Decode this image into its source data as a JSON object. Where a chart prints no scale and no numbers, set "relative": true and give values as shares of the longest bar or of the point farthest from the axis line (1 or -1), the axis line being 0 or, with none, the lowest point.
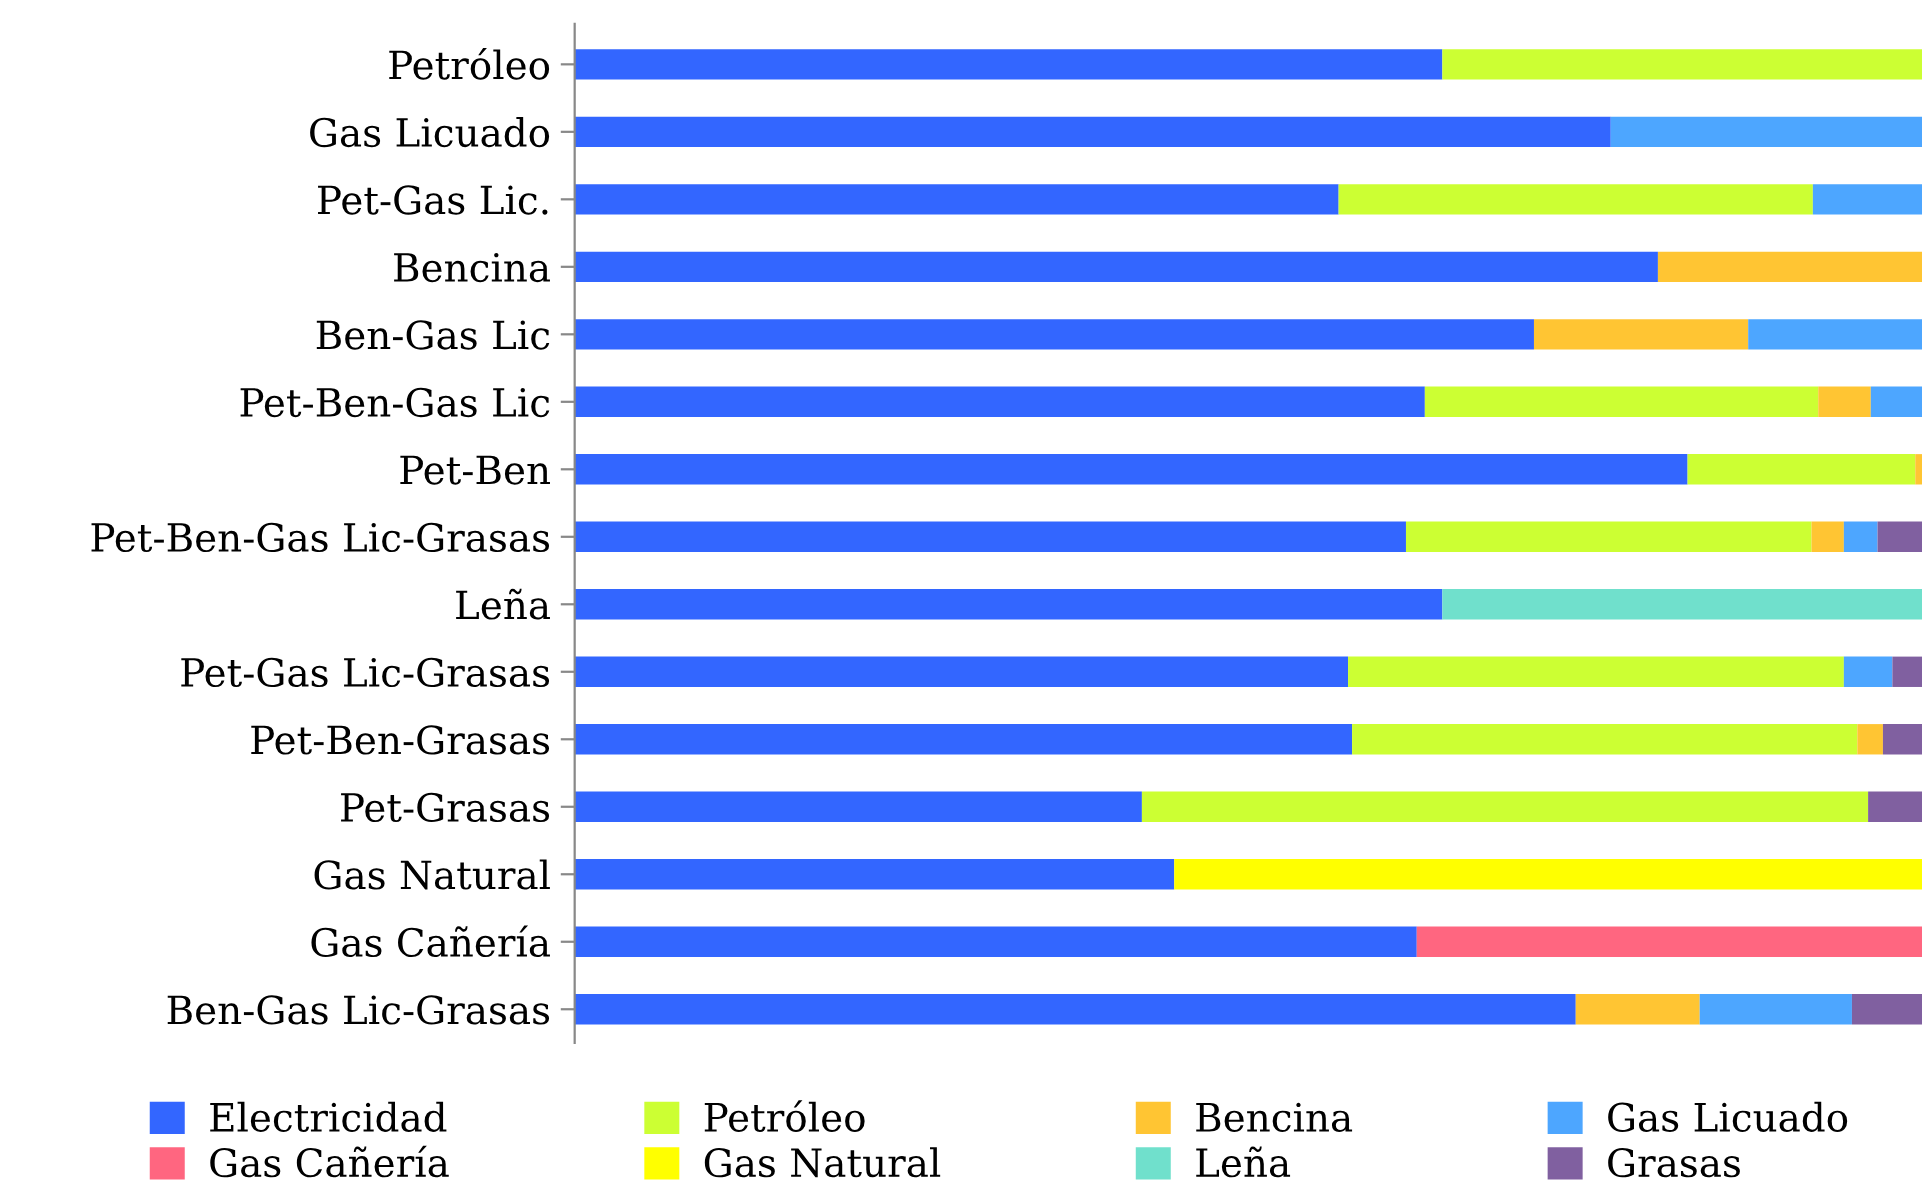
{
  "chart_data": {
    "type": "bar",
    "orientation": "horizontal",
    "stacked": true,
    "relative": true,
    "grid": false,
    "legend": "bottom",
    "categories": [
      "Petróleo",
      "Gas Licuado",
      "Pet-Gas Lic.",
      "Bencina",
      "Ben-Gas Lic",
      "Pet-Ben-Gas Lic",
      "Pet-Ben",
      "Pet-Ben-Gas Lic-Grasas",
      "Leña",
      "Pet-Gas Lic-Grasas",
      "Pet-Ben-Grasas",
      "Pet-Grasas",
      "Gas Natural",
      "Gas Cañería",
      "Ben-Gas Lic-Grasas"
    ],
    "series": [
      {
        "name": "Electricidad",
        "color": "#3366ff",
        "values": [
          0.644,
          0.769,
          0.567,
          0.804,
          0.712,
          0.631,
          0.826,
          0.617,
          0.644,
          0.574,
          0.577,
          0.421,
          0.445,
          0.625,
          0.743
        ]
      },
      {
        "name": "Petróleo",
        "color": "#ccff33",
        "values": [
          0.356,
          0,
          0.352,
          0,
          0,
          0.292,
          0.169,
          0.301,
          0,
          0.368,
          0.375,
          0.539,
          0,
          0,
          0
        ]
      },
      {
        "name": "Bencina",
        "color": "#ffc533",
        "values": [
          0,
          0,
          0,
          0.196,
          0.159,
          0.039,
          0.005,
          0.024,
          0,
          0,
          0.019,
          0,
          0,
          0,
          0.092
        ]
      },
      {
        "name": "Gas Licuado",
        "color": "#4da6ff",
        "values": [
          0,
          0.231,
          0.081,
          0,
          0.129,
          0.038,
          0,
          0.025,
          0,
          0.036,
          0,
          0,
          0,
          0,
          0.113
        ]
      },
      {
        "name": "Gas Cañería",
        "color": "#ff6680",
        "values": [
          0,
          0,
          0,
          0,
          0,
          0,
          0,
          0,
          0,
          0,
          0,
          0,
          0,
          0.375,
          0
        ]
      },
      {
        "name": "Gas Natural",
        "color": "#ffff00",
        "values": [
          0,
          0,
          0,
          0,
          0,
          0,
          0,
          0,
          0,
          0,
          0,
          0,
          0.555,
          0,
          0
        ]
      },
      {
        "name": "Leña",
        "color": "#70e0cc",
        "values": [
          0,
          0,
          0,
          0,
          0,
          0,
          0,
          0,
          0.356,
          0,
          0,
          0,
          0,
          0,
          0
        ]
      },
      {
        "name": "Grasas",
        "color": "#8060a0",
        "values": [
          0,
          0,
          0,
          0,
          0,
          0,
          0,
          0.033,
          0,
          0.022,
          0.029,
          0.04,
          0,
          0,
          0.052
        ]
      }
    ]
  }
}
